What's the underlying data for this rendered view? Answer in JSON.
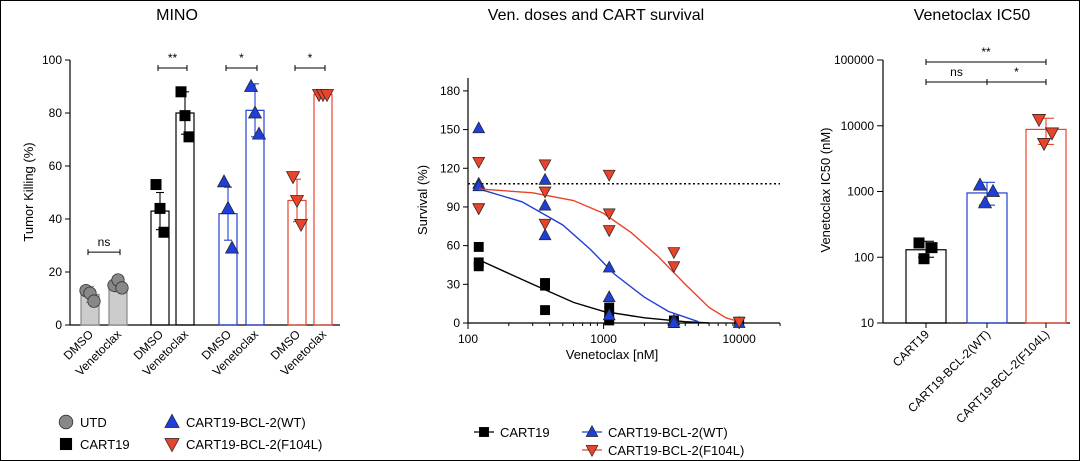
{
  "chart_data": [
    {
      "type": "bar",
      "title": "MINO",
      "ylabel": "Tumor Killing (%)",
      "ylim": [
        0,
        100
      ],
      "yticks": [
        "0",
        "20",
        "40",
        "60",
        "80",
        "100"
      ],
      "categories": [
        "DMSO",
        "Venetoclax"
      ],
      "groups": [
        {
          "name": "UTD",
          "color": "#888888",
          "marker": "circle",
          "means": [
            11.5,
            15
          ],
          "sd": [
            3,
            2.5
          ],
          "points": [
            [
              13,
              12,
              9
            ],
            [
              15,
              17,
              14
            ]
          ],
          "sig": "ns"
        },
        {
          "name": "CART19",
          "color": "#000000",
          "marker": "square",
          "means": [
            43,
            80
          ],
          "sd": [
            7,
            8
          ],
          "points": [
            [
              53,
              44,
              35
            ],
            [
              88,
              79,
              71
            ]
          ],
          "sig": "**"
        },
        {
          "name": "CART19-BCL-2(WT)",
          "color": "#1f3fd6",
          "marker": "triangle-up",
          "means": [
            42,
            81
          ],
          "sd": [
            10,
            10
          ],
          "points": [
            [
              54,
              44,
              29
            ],
            [
              90,
              80,
              72
            ]
          ],
          "sig": "*"
        },
        {
          "name": "CART19-BCL-2(F104L)",
          "color": "#e8432b",
          "marker": "triangle-down",
          "means": [
            47,
            87
          ],
          "sd": [
            8,
            1
          ],
          "points": [
            [
              56,
              47,
              38
            ],
            [
              87,
              87,
              87
            ]
          ],
          "sig": "*"
        }
      ],
      "legend": [
        {
          "label": "UTD",
          "marker": "circle",
          "color": "#888888"
        },
        {
          "label": "CART19",
          "marker": "square",
          "color": "#000000"
        },
        {
          "label": "CART19-BCL-2(WT)",
          "marker": "triangle-up",
          "color": "#1f3fd6"
        },
        {
          "label": "CART19-BCL-2(F104L)",
          "marker": "triangle-down",
          "color": "#e8432b"
        }
      ]
    },
    {
      "type": "scatter",
      "title": "Ven. doses and CART survival",
      "xlabel": "Venetoclax [nM]",
      "ylabel": "Survival (%)",
      "xscale": "log",
      "xlim": [
        100,
        20000
      ],
      "ylim": [
        0,
        190
      ],
      "xticks": [
        "100",
        "1000",
        "10000"
      ],
      "yticks": [
        "0",
        "30",
        "60",
        "90",
        "120",
        "150",
        "180"
      ],
      "reference_line_y": 108,
      "series": [
        {
          "name": "CART19",
          "color": "#000000",
          "marker": "square",
          "points": [
            [
              120,
              59
            ],
            [
              120,
              47
            ],
            [
              120,
              44
            ],
            [
              370,
              31
            ],
            [
              370,
              29
            ],
            [
              370,
              10
            ],
            [
              1100,
              12
            ],
            [
              1100,
              5
            ],
            [
              1100,
              2
            ],
            [
              3300,
              2
            ],
            [
              3300,
              0
            ],
            [
              10000,
              1
            ]
          ],
          "curve": [
            [
              120,
              49
            ],
            [
              300,
              30
            ],
            [
              600,
              16
            ],
            [
              1000,
              9
            ],
            [
              2000,
              4
            ],
            [
              4000,
              1
            ],
            [
              6000,
              0
            ]
          ]
        },
        {
          "name": "CART19-BCL-2(WT)",
          "color": "#1f3fd6",
          "marker": "triangle-up",
          "points": [
            [
              120,
              151
            ],
            [
              120,
              108
            ],
            [
              120,
              106
            ],
            [
              370,
              111
            ],
            [
              370,
              91
            ],
            [
              370,
              68
            ],
            [
              1100,
              43
            ],
            [
              1100,
              20
            ],
            [
              1100,
              6
            ],
            [
              3300,
              2
            ],
            [
              3300,
              0
            ],
            [
              10000,
              0
            ]
          ],
          "curve": [
            [
              120,
              104
            ],
            [
              250,
              94
            ],
            [
              500,
              76
            ],
            [
              800,
              57
            ],
            [
              1200,
              38
            ],
            [
              2000,
              20
            ],
            [
              3000,
              9
            ],
            [
              5000,
              1
            ]
          ]
        },
        {
          "name": "CART19-BCL-2(F104L)",
          "color": "#e8432b",
          "marker": "triangle-down",
          "points": [
            [
              120,
              125
            ],
            [
              120,
              89
            ],
            [
              120,
              89
            ],
            [
              370,
              123
            ],
            [
              370,
              102
            ],
            [
              370,
              77
            ],
            [
              1100,
              115
            ],
            [
              1100,
              85
            ],
            [
              1100,
              72
            ],
            [
              3300,
              55
            ],
            [
              3300,
              44
            ],
            [
              10000,
              1
            ]
          ],
          "curve": [
            [
              120,
              104
            ],
            [
              300,
              101
            ],
            [
              600,
              95
            ],
            [
              1000,
              85
            ],
            [
              1600,
              70
            ],
            [
              2500,
              52
            ],
            [
              4000,
              30
            ],
            [
              6000,
              12
            ],
            [
              8000,
              4
            ],
            [
              10000,
              1
            ]
          ]
        }
      ],
      "legend": [
        {
          "label": "CART19",
          "marker": "square",
          "color": "#000000"
        },
        {
          "label": "CART19-BCL-2(WT)",
          "marker": "triangle-up",
          "color": "#1f3fd6"
        },
        {
          "label": "CART19-BCL-2(F104L)",
          "marker": "triangle-down",
          "color": "#e8432b"
        }
      ]
    },
    {
      "type": "bar",
      "title": "Venetoclax IC50",
      "ylabel": "Venetoclax IC50 (nM)",
      "yscale": "log",
      "ylim": [
        10,
        100000
      ],
      "yticks": [
        "10",
        "100",
        "1000",
        "10000",
        "100000"
      ],
      "categories": [
        "CART19",
        "CART19-BCL-2(WT)",
        "CART19-BCL-2(F104L)"
      ],
      "colors": [
        "#000000",
        "#1f3fd6",
        "#e8432b"
      ],
      "markers": [
        "square",
        "triangle-up",
        "triangle-down"
      ],
      "means": [
        130,
        950,
        8800
      ],
      "err_low": [
        100,
        620,
        5200
      ],
      "err_high": [
        175,
        1380,
        13000
      ],
      "points": [
        [
          165,
          140,
          95
        ],
        [
          1250,
          1000,
          670
        ],
        [
          12500,
          7800,
          5400
        ]
      ],
      "significance": [
        {
          "from": 0,
          "to": 2,
          "label": "**"
        },
        {
          "from": 0,
          "to": 1,
          "label": "ns"
        },
        {
          "from": 1,
          "to": 2,
          "label": "*"
        }
      ]
    }
  ]
}
